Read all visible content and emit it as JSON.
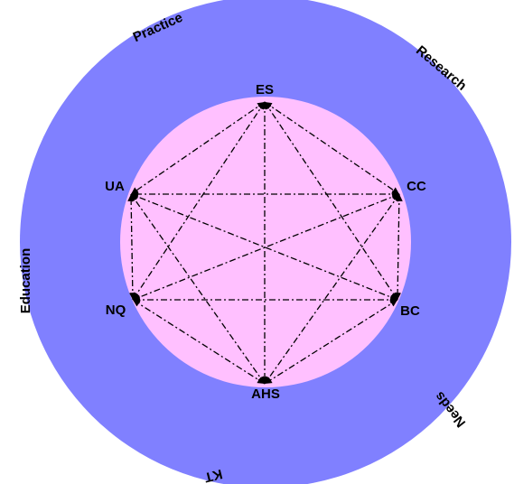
{
  "nodes": [
    {
      "label": "ES"
    },
    {
      "label": "CC"
    },
    {
      "label": "BC"
    },
    {
      "label": "AHS"
    },
    {
      "label": "NQ"
    },
    {
      "label": "UA"
    }
  ],
  "ring_labels": [
    "Practice",
    "Research",
    "Education",
    "Needs",
    "KT"
  ]
}
